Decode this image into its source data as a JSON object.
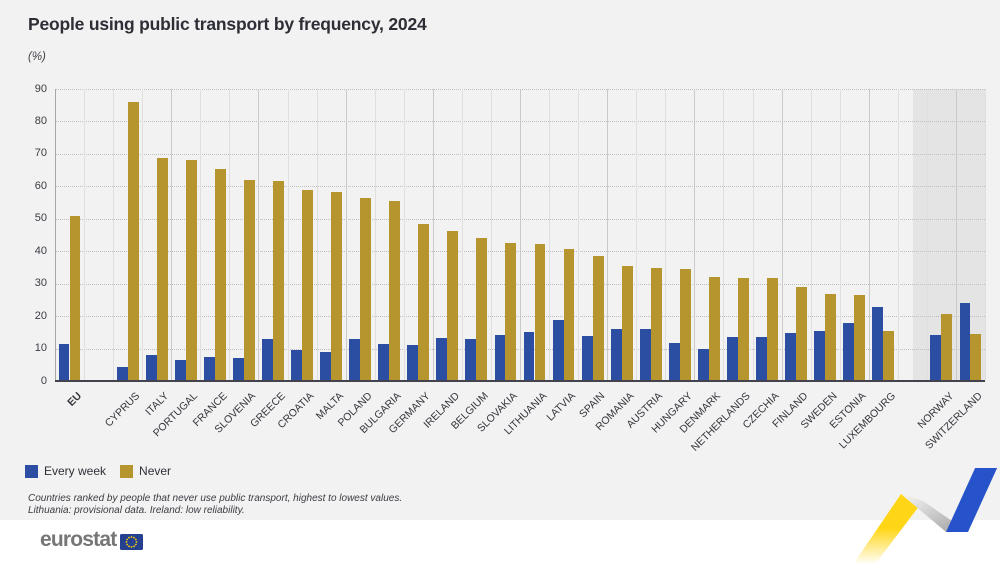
{
  "header": {
    "title": "People using public transport by frequency, 2024",
    "unit_label": "(%)"
  },
  "chart_data": {
    "type": "bar",
    "title": "People using public transport by frequency, 2024",
    "ylabel": "(%)",
    "ylim": [
      0,
      90
    ],
    "yticks": [
      0,
      10,
      20,
      30,
      40,
      50,
      60,
      70,
      80,
      90
    ],
    "grid": "horizontal-dotted",
    "legend_position": "bottom-left",
    "categories": [
      "EU",
      "CYPRUS",
      "ITALY",
      "PORTUGAL",
      "FRANCE",
      "SLOVENIA",
      "GREECE",
      "CROATIA",
      "MALTA",
      "POLAND",
      "BULGARIA",
      "GERMANY",
      "IRELAND",
      "BELGIUM",
      "SLOVAKIA",
      "LITHUANIA",
      "LATVIA",
      "SPAIN",
      "ROMANIA",
      "AUSTRIA",
      "HUNGARY",
      "DENMARK",
      "NETHERLANDS",
      "CZECHIA",
      "FINLAND",
      "SWEDEN",
      "ESTONIA",
      "LUXEMBOURG",
      "NORWAY",
      "SWITZERLAND"
    ],
    "series": [
      {
        "name": "Every week",
        "color": "#2b4ea3",
        "values": [
          11.5,
          4.2,
          8.0,
          6.4,
          7.4,
          7.0,
          13.0,
          9.6,
          8.9,
          13.0,
          11.5,
          11.0,
          13.4,
          13.0,
          14.3,
          15.2,
          18.8,
          13.8,
          16.0,
          16.0,
          11.8,
          9.8,
          13.6,
          13.5,
          14.8,
          15.5,
          17.9,
          22.9,
          14.2,
          24.2
        ]
      },
      {
        "name": "Never",
        "color": "#b6942e",
        "values": [
          50.8,
          86.0,
          68.6,
          68.2,
          65.5,
          62.0,
          61.5,
          59.0,
          58.4,
          56.4,
          55.5,
          48.4,
          46.1,
          44.2,
          42.4,
          42.1,
          40.6,
          38.5,
          35.4,
          34.8,
          34.6,
          32.2,
          31.9,
          31.7,
          28.9,
          26.9,
          26.6,
          15.4,
          20.7,
          14.6
        ]
      }
    ],
    "gaps_after": [
      "EU",
      "LUXEMBOURG"
    ],
    "shaded_categories": [
      "NORWAY",
      "SWITZERLAND"
    ],
    "emphasized_category": "EU"
  },
  "legend": {
    "items": [
      {
        "label": "Every week",
        "color": "#2b4ea3"
      },
      {
        "label": "Never",
        "color": "#b6942e"
      }
    ]
  },
  "footnotes": {
    "line1": "Countries ranked by people that never use public transport, highest to lowest values.",
    "line2": "Lithuania: provisional data. Ireland: low reliability."
  },
  "footer": {
    "logo_text": "eurostat"
  },
  "decoration": {
    "ribbon_icon": "eurostat-zigzag-ribbon",
    "colors": {
      "yellow": "#ffd617",
      "blue": "#2653c9",
      "gray_light": "#f7f7f7",
      "gray_dark": "#9f9f9f"
    }
  },
  "colors": {
    "page_background": "#f2f2f2",
    "footer_background": "#ffffff",
    "shaded_region": "#e4e4e4",
    "flag_blue": "#24408f",
    "flag_stars": "#ffcf00"
  }
}
